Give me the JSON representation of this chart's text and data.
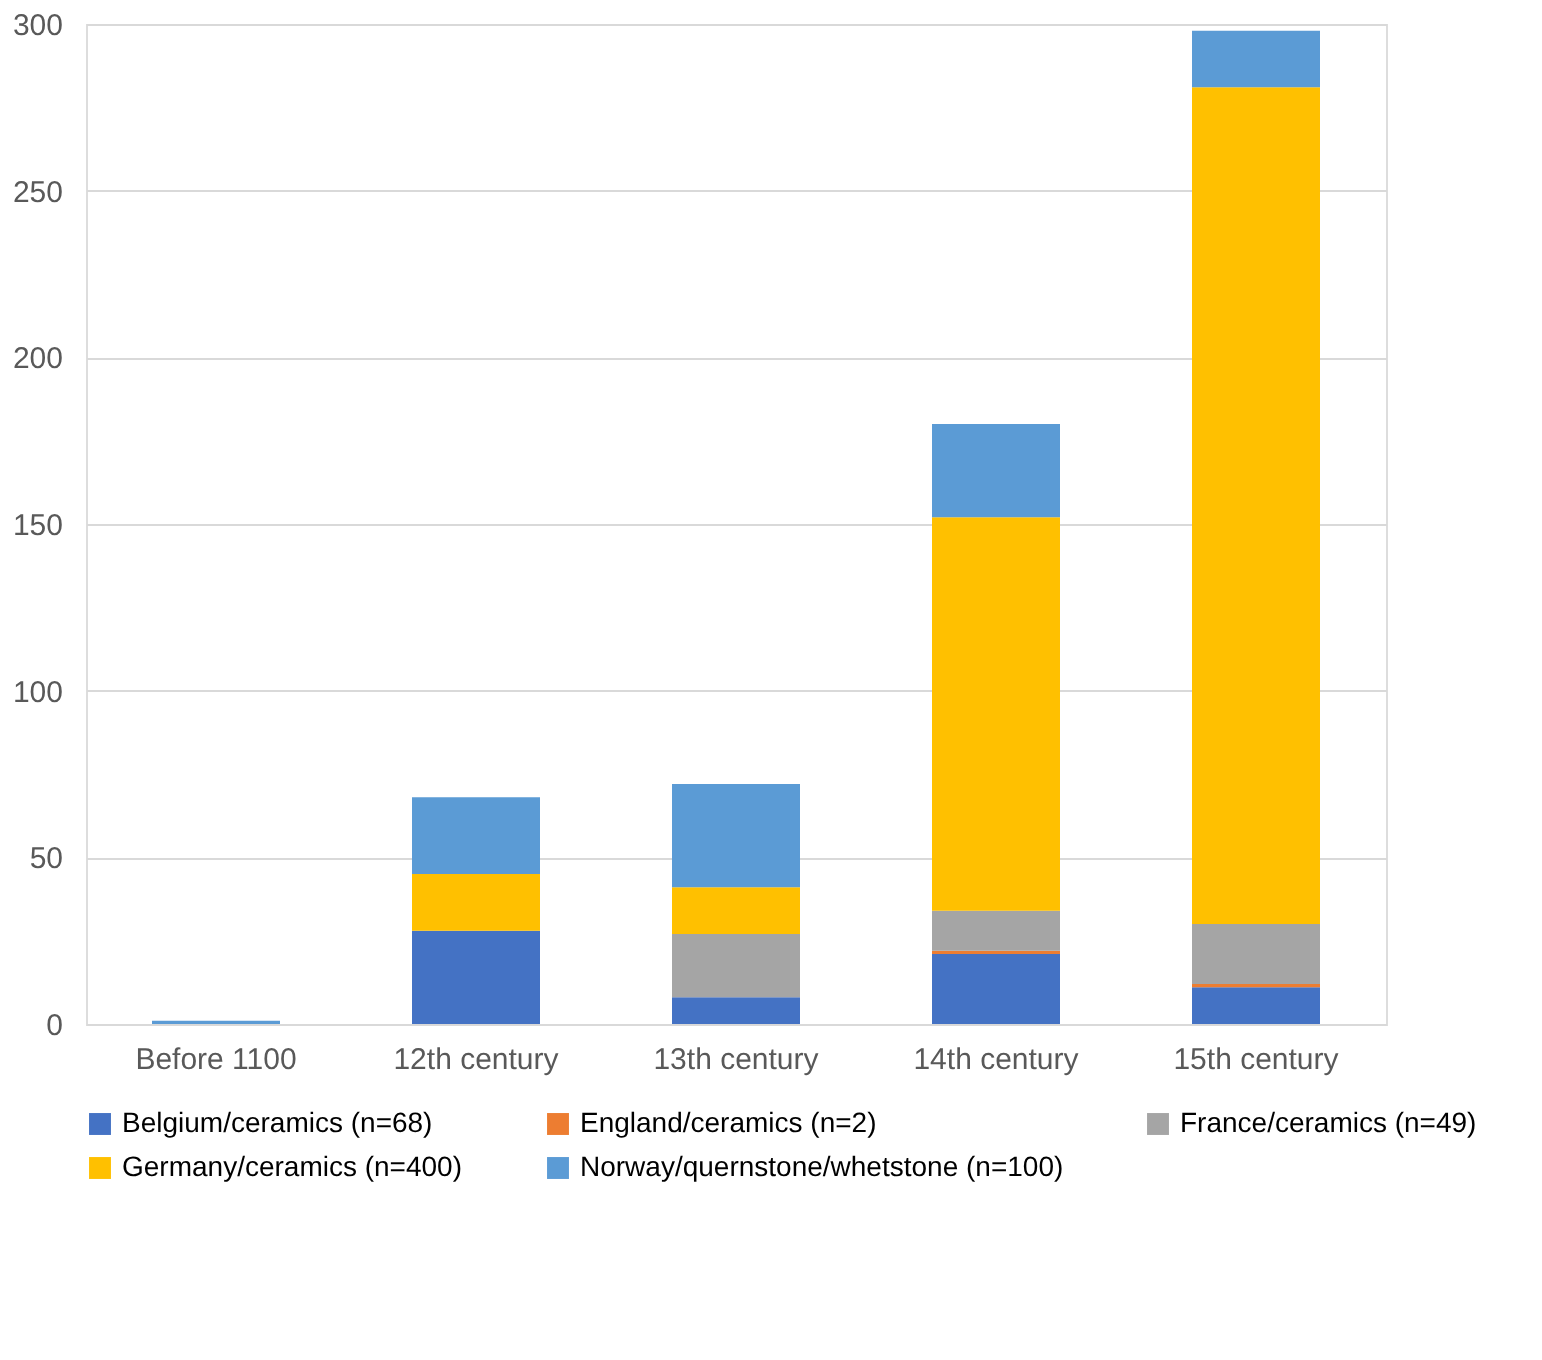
{
  "chart_data": {
    "type": "bar",
    "stacked": true,
    "categories": [
      "Before 1100",
      "12th century",
      "13th century",
      "14th century",
      "15th century"
    ],
    "series": [
      {
        "name": "Belgium/ceramics (n=68)",
        "color": "#4472c4",
        "values": [
          0,
          28,
          8,
          21,
          11
        ]
      },
      {
        "name": "England/ceramics (n=2)",
        "color": "#ed7d31",
        "values": [
          0,
          0,
          0,
          1,
          1
        ]
      },
      {
        "name": "France/ceramics (n=49)",
        "color": "#a5a5a5",
        "values": [
          0,
          0,
          19,
          12,
          18
        ]
      },
      {
        "name": "Germany/ceramics (n=400)",
        "color": "#ffc000",
        "values": [
          0,
          17,
          14,
          118,
          251
        ]
      },
      {
        "name": "Norway/quernstone/whetstone (n=100)",
        "color": "#5b9bd5",
        "values": [
          1,
          23,
          31,
          28,
          17
        ]
      }
    ],
    "ylim": [
      0,
      300
    ],
    "yticks": [
      0,
      50,
      100,
      150,
      200,
      250,
      300
    ],
    "grid": "y",
    "legend": "bottom"
  }
}
